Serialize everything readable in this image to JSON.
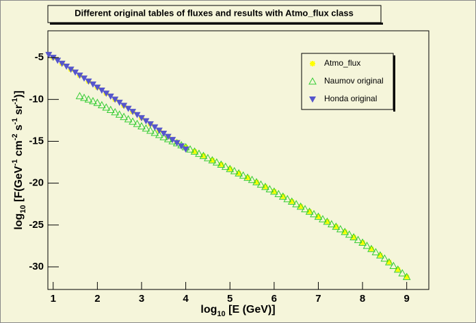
{
  "chart_data": {
    "type": "scatter",
    "title": "Different original tables of fluxes and results with Atmo_flux class",
    "xlabel": [
      "log",
      "10",
      " [E (GeV)]"
    ],
    "ylabel": [
      "log",
      "10",
      " [F(GeV",
      "-1",
      " cm",
      "-2",
      " s",
      "-1",
      " sr",
      "-1",
      ")]"
    ],
    "xlim": [
      0.88,
      9.5
    ],
    "ylim": [
      -32.7,
      -1.8
    ],
    "xticks": [
      1,
      2,
      3,
      4,
      5,
      6,
      7,
      8,
      9
    ],
    "yticks": [
      -5,
      -10,
      -15,
      -20,
      -25,
      -30
    ],
    "legend": "top-right",
    "series": [
      {
        "name": "Atmo_flux",
        "color": "#ffff00",
        "marker": "star",
        "x": [
          1.0,
          1.2,
          1.4,
          1.6,
          1.8,
          2.0,
          2.2,
          2.4,
          2.6,
          2.8,
          3.0,
          3.2,
          3.4,
          3.6,
          3.8,
          4.0,
          4.2,
          4.4,
          4.6,
          4.8,
          5.0,
          5.2,
          5.4,
          5.6,
          5.8,
          6.0,
          6.2,
          6.4,
          6.6,
          6.8,
          7.0,
          7.2,
          7.4,
          7.6,
          7.8,
          8.0,
          8.2,
          8.4,
          8.6,
          8.8,
          9.0
        ],
        "values": [
          -5.0,
          -5.7,
          -6.41,
          -7.12,
          -7.83,
          -8.55,
          -9.27,
          -10.0,
          -10.73,
          -11.46,
          -12.2,
          -12.94,
          -13.69,
          -14.44,
          -15.1,
          -15.7,
          -16.22,
          -16.74,
          -17.26,
          -17.78,
          -18.3,
          -18.82,
          -19.34,
          -19.88,
          -20.44,
          -21.0,
          -21.6,
          -22.2,
          -22.8,
          -23.4,
          -24.0,
          -24.6,
          -25.2,
          -25.82,
          -26.46,
          -27.1,
          -27.86,
          -28.62,
          -29.44,
          -30.32,
          -31.2
        ]
      },
      {
        "name": "Naumov original",
        "color": "#33cc33",
        "marker": "open-triangle-up",
        "x": [
          1.6,
          1.7,
          1.8,
          1.9,
          2.0,
          2.1,
          2.2,
          2.3,
          2.4,
          2.5,
          2.6,
          2.7,
          2.8,
          2.9,
          3.0,
          3.1,
          3.2,
          3.3,
          3.4,
          3.5,
          3.6,
          3.7,
          3.8,
          3.9,
          4.0,
          4.1,
          4.2,
          4.3,
          4.4,
          4.5,
          4.6,
          4.7,
          4.8,
          4.9,
          5.0,
          5.1,
          5.2,
          5.3,
          5.4,
          5.5,
          5.6,
          5.7,
          5.8,
          5.9,
          6.0,
          6.1,
          6.2,
          6.3,
          6.4,
          6.5,
          6.6,
          6.7,
          6.8,
          6.9,
          7.0,
          7.1,
          7.2,
          7.3,
          7.4,
          7.5,
          7.6,
          7.7,
          7.8,
          7.9,
          8.0,
          8.1,
          8.2,
          8.3,
          8.4,
          8.5,
          8.6,
          8.7,
          8.8,
          8.9,
          9.0
        ],
        "values": [
          -9.6,
          -9.8,
          -10.0,
          -10.2,
          -10.4,
          -10.68,
          -10.96,
          -11.24,
          -11.52,
          -11.8,
          -12.08,
          -12.36,
          -12.64,
          -12.92,
          -13.2,
          -13.46,
          -13.72,
          -13.98,
          -14.24,
          -14.5,
          -14.74,
          -14.98,
          -15.22,
          -15.46,
          -15.7,
          -15.96,
          -16.22,
          -16.48,
          -16.74,
          -17.0,
          -17.26,
          -17.52,
          -17.78,
          -18.04,
          -18.3,
          -18.56,
          -18.82,
          -19.08,
          -19.34,
          -19.6,
          -19.88,
          -20.16,
          -20.44,
          -20.72,
          -21.0,
          -21.3,
          -21.6,
          -21.9,
          -22.2,
          -22.5,
          -22.8,
          -23.1,
          -23.4,
          -23.7,
          -24.0,
          -24.3,
          -24.6,
          -24.9,
          -25.2,
          -25.5,
          -25.82,
          -26.14,
          -26.46,
          -26.78,
          -27.1,
          -27.48,
          -27.86,
          -28.24,
          -28.62,
          -29.0,
          -29.44,
          -29.88,
          -30.32,
          -30.76,
          -31.2
        ]
      },
      {
        "name": "Honda original",
        "color": "#5555cc",
        "marker": "triangle-down",
        "x": [
          0.9,
          1.0,
          1.1,
          1.2,
          1.3,
          1.4,
          1.5,
          1.6,
          1.7,
          1.8,
          1.9,
          2.0,
          2.1,
          2.2,
          2.3,
          2.4,
          2.5,
          2.6,
          2.7,
          2.8,
          2.9,
          3.0,
          3.1,
          3.2,
          3.3,
          3.4,
          3.5,
          3.6,
          3.7,
          3.8,
          3.9,
          4.0
        ],
        "values": [
          -4.65,
          -5.0,
          -5.35,
          -5.7,
          -6.05,
          -6.41,
          -6.76,
          -7.12,
          -7.47,
          -7.83,
          -8.19,
          -8.55,
          -8.91,
          -9.27,
          -9.63,
          -10.0,
          -10.36,
          -10.73,
          -11.09,
          -11.46,
          -11.83,
          -12.2,
          -12.57,
          -12.94,
          -13.31,
          -13.69,
          -14.06,
          -14.44,
          -14.81,
          -15.19,
          -15.57,
          -15.95
        ]
      }
    ]
  }
}
